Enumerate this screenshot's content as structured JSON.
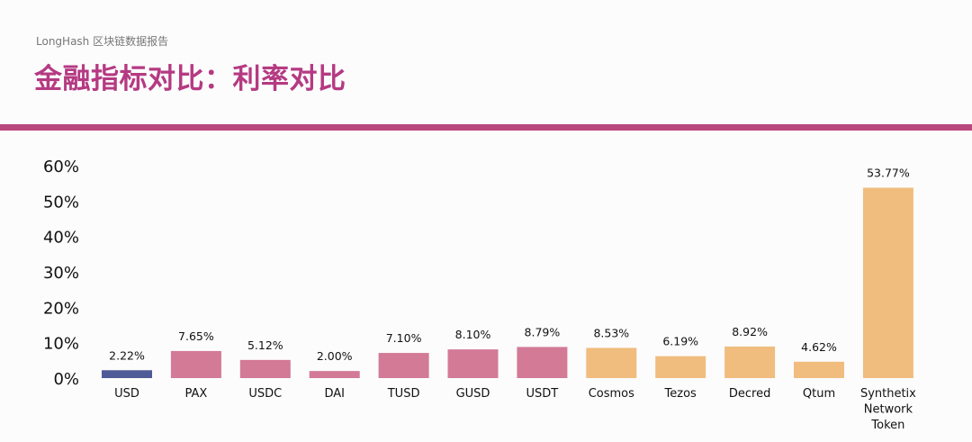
{
  "header": {
    "brand": "LongHash 区块链数据报告",
    "title": "金融指标对比：利率对比"
  },
  "colors": {
    "usd": "#4e5b96",
    "stablecoin": "#d37a96",
    "crypto": "#f0bd7f",
    "title": "#b53a82",
    "divider": "#b9487c"
  },
  "chart_data": {
    "type": "bar",
    "categories": [
      "USD",
      "PAX",
      "USDC",
      "DAI",
      "TUSD",
      "GUSD",
      "USDT",
      "Cosmos",
      "Tezos",
      "Decred",
      "Qtum",
      "Synthetix Network Token"
    ],
    "category_lines": [
      [
        "USD"
      ],
      [
        "PAX"
      ],
      [
        "USDC"
      ],
      [
        "DAI"
      ],
      [
        "TUSD"
      ],
      [
        "GUSD"
      ],
      [
        "USDT"
      ],
      [
        "Cosmos"
      ],
      [
        "Tezos"
      ],
      [
        "Decred"
      ],
      [
        "Qtum"
      ],
      [
        "Synthetix",
        "Network",
        "Token"
      ]
    ],
    "values": [
      2.22,
      7.65,
      5.12,
      2.0,
      7.1,
      8.1,
      8.79,
      8.53,
      6.19,
      8.92,
      4.62,
      53.77
    ],
    "value_labels": [
      "2.22%",
      "7.65%",
      "5.12%",
      "2.00%",
      "7.10%",
      "8.10%",
      "8.79%",
      "8.53%",
      "6.19%",
      "8.92%",
      "4.62%",
      "53.77%"
    ],
    "bar_groups": [
      "usd",
      "stablecoin",
      "stablecoin",
      "stablecoin",
      "stablecoin",
      "stablecoin",
      "stablecoin",
      "crypto",
      "crypto",
      "crypto",
      "crypto",
      "crypto"
    ],
    "y_ticks": [
      "0%",
      "10%",
      "20%",
      "30%",
      "40%",
      "50%",
      "60%"
    ],
    "ylim": [
      0,
      60
    ],
    "title": "",
    "xlabel": "",
    "ylabel": "",
    "grid": false,
    "legend": "none"
  }
}
